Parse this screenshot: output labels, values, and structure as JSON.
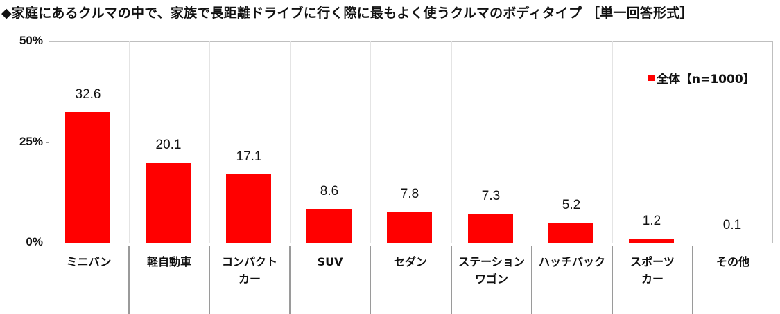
{
  "title": "◆家庭にあるクルマの中で、家族で長距離ドライブに行く際に最もよく使うクルマのボディタイプ ［単一回答形式］",
  "legend": {
    "label": "全体【n=1000】",
    "color": "#ff0000"
  },
  "y_axis": {
    "ticks": [
      "50%",
      "25%",
      "0%"
    ]
  },
  "chart_data": {
    "type": "bar",
    "title": "◆家庭にあるクルマの中で、家族で長距離ドライブに行く際に最もよく使うクルマのボディタイプ ［単一回答形式］",
    "xlabel": "",
    "ylabel": "",
    "ylim": [
      0,
      50
    ],
    "yticks": [
      "0%",
      "25%",
      "50%"
    ],
    "grid": false,
    "legend_position": "top-right",
    "categories": [
      "ミニバン",
      "軽自動車",
      "コンパクトカー",
      "SUV",
      "セダン",
      "ステーションワゴン",
      "ハッチバック",
      "スポーツカー",
      "その他"
    ],
    "series": [
      {
        "name": "全体【n=1000】",
        "color": "#ff0000",
        "values": [
          32.6,
          20.1,
          17.1,
          8.6,
          7.8,
          7.3,
          5.2,
          1.2,
          0.1
        ]
      }
    ]
  },
  "bars": [
    {
      "label_line1": "ミニバン",
      "label_line2": "",
      "value": "32.6"
    },
    {
      "label_line1": "軽自動車",
      "label_line2": "",
      "value": "20.1"
    },
    {
      "label_line1": "コンパクト",
      "label_line2": "カー",
      "value": "17.1"
    },
    {
      "label_line1": "SUV",
      "label_line2": "",
      "value": "8.6"
    },
    {
      "label_line1": "セダン",
      "label_line2": "",
      "value": "7.8"
    },
    {
      "label_line1": "ステーション",
      "label_line2": "ワゴン",
      "value": "7.3"
    },
    {
      "label_line1": "ハッチバック",
      "label_line2": "",
      "value": "5.2"
    },
    {
      "label_line1": "スポーツ",
      "label_line2": "カー",
      "value": "1.2"
    },
    {
      "label_line1": "その他",
      "label_line2": "",
      "value": "0.1"
    }
  ]
}
